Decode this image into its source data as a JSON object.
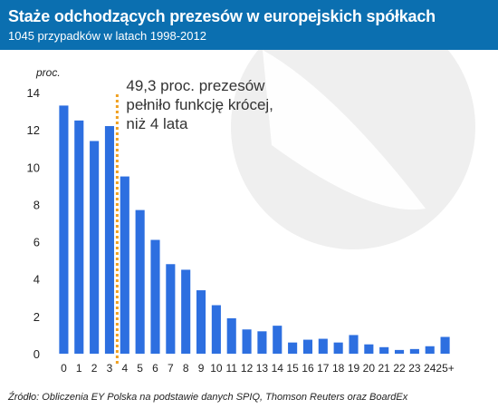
{
  "header": {
    "title": "Staże odchodzących prezesów w europejskich spółkach",
    "subtitle": "1045 przypadków w latach 1998-2012"
  },
  "source": "Źródło: Obliczenia EY Polska na podstawie danych SPIQ, Thomson Reuters oraz BoardEx",
  "colors": {
    "header": "#0b6fb0",
    "bar": "#2d6fe0",
    "marker": "#f0a020",
    "watermark": "#e6e6e6",
    "text": "#222222"
  },
  "chart_data": {
    "type": "bar",
    "categories": [
      "0",
      "1",
      "2",
      "3",
      "4",
      "5",
      "6",
      "7",
      "8",
      "9",
      "10",
      "11",
      "12",
      "13",
      "14",
      "15",
      "16",
      "17",
      "18",
      "19",
      "20",
      "21",
      "22",
      "23",
      "24",
      "25+"
    ],
    "values": [
      13.3,
      12.5,
      11.4,
      12.2,
      9.5,
      7.7,
      6.1,
      4.8,
      4.5,
      3.4,
      2.6,
      1.9,
      1.3,
      1.2,
      1.5,
      0.6,
      0.75,
      0.8,
      0.6,
      1.0,
      0.5,
      0.35,
      0.2,
      0.25,
      0.4,
      0.9
    ],
    "ylabel": "proc.",
    "ylim": [
      0,
      14
    ],
    "yticks": [
      0,
      2,
      4,
      6,
      8,
      10,
      12,
      14
    ],
    "grid": false,
    "marker_between": [
      "3",
      "4"
    ],
    "annotation": [
      "49,3 proc. prezesów",
      "pełniło funkcję krócej,",
      "niż 4 lata"
    ]
  }
}
